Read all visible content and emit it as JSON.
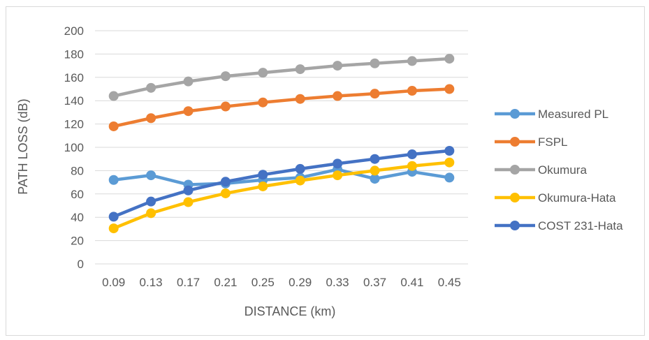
{
  "chart_data": {
    "type": "line",
    "title": "",
    "xlabel": "DISTANCE (km)",
    "ylabel": "PATH LOSS (dB)",
    "categories": [
      "0.09",
      "0.13",
      "0.17",
      "0.21",
      "0.25",
      "0.29",
      "0.33",
      "0.37",
      "0.41",
      "0.45"
    ],
    "ylim": [
      0,
      200
    ],
    "yticks": [
      "0",
      "20",
      "40",
      "60",
      "80",
      "100",
      "120",
      "140",
      "160",
      "180",
      "200"
    ],
    "grid": true,
    "legend_position": "right",
    "series": [
      {
        "name": "Measured PL",
        "color": "#5b9bd5",
        "values": [
          72,
          76,
          68,
          69,
          72,
          74,
          81,
          73,
          79,
          74
        ]
      },
      {
        "name": "FSPL",
        "color": "#ed7d31",
        "values": [
          118,
          125,
          131,
          135,
          138.5,
          141.5,
          144,
          146,
          148.5,
          150
        ]
      },
      {
        "name": "Okumura",
        "color": "#a5a5a5",
        "values": [
          144,
          151,
          156.5,
          161,
          164,
          167,
          170,
          172,
          174,
          176
        ]
      },
      {
        "name": "Okumura-Hata",
        "color": "#ffc000",
        "values": [
          30.5,
          43.5,
          53,
          60.5,
          66.5,
          71.5,
          76,
          80,
          84,
          87
        ]
      },
      {
        "name": "COST 231-Hata",
        "color": "#4472c4",
        "values": [
          40.5,
          53.5,
          63,
          70.5,
          76.5,
          81.5,
          86,
          90,
          94,
          97
        ]
      }
    ]
  }
}
